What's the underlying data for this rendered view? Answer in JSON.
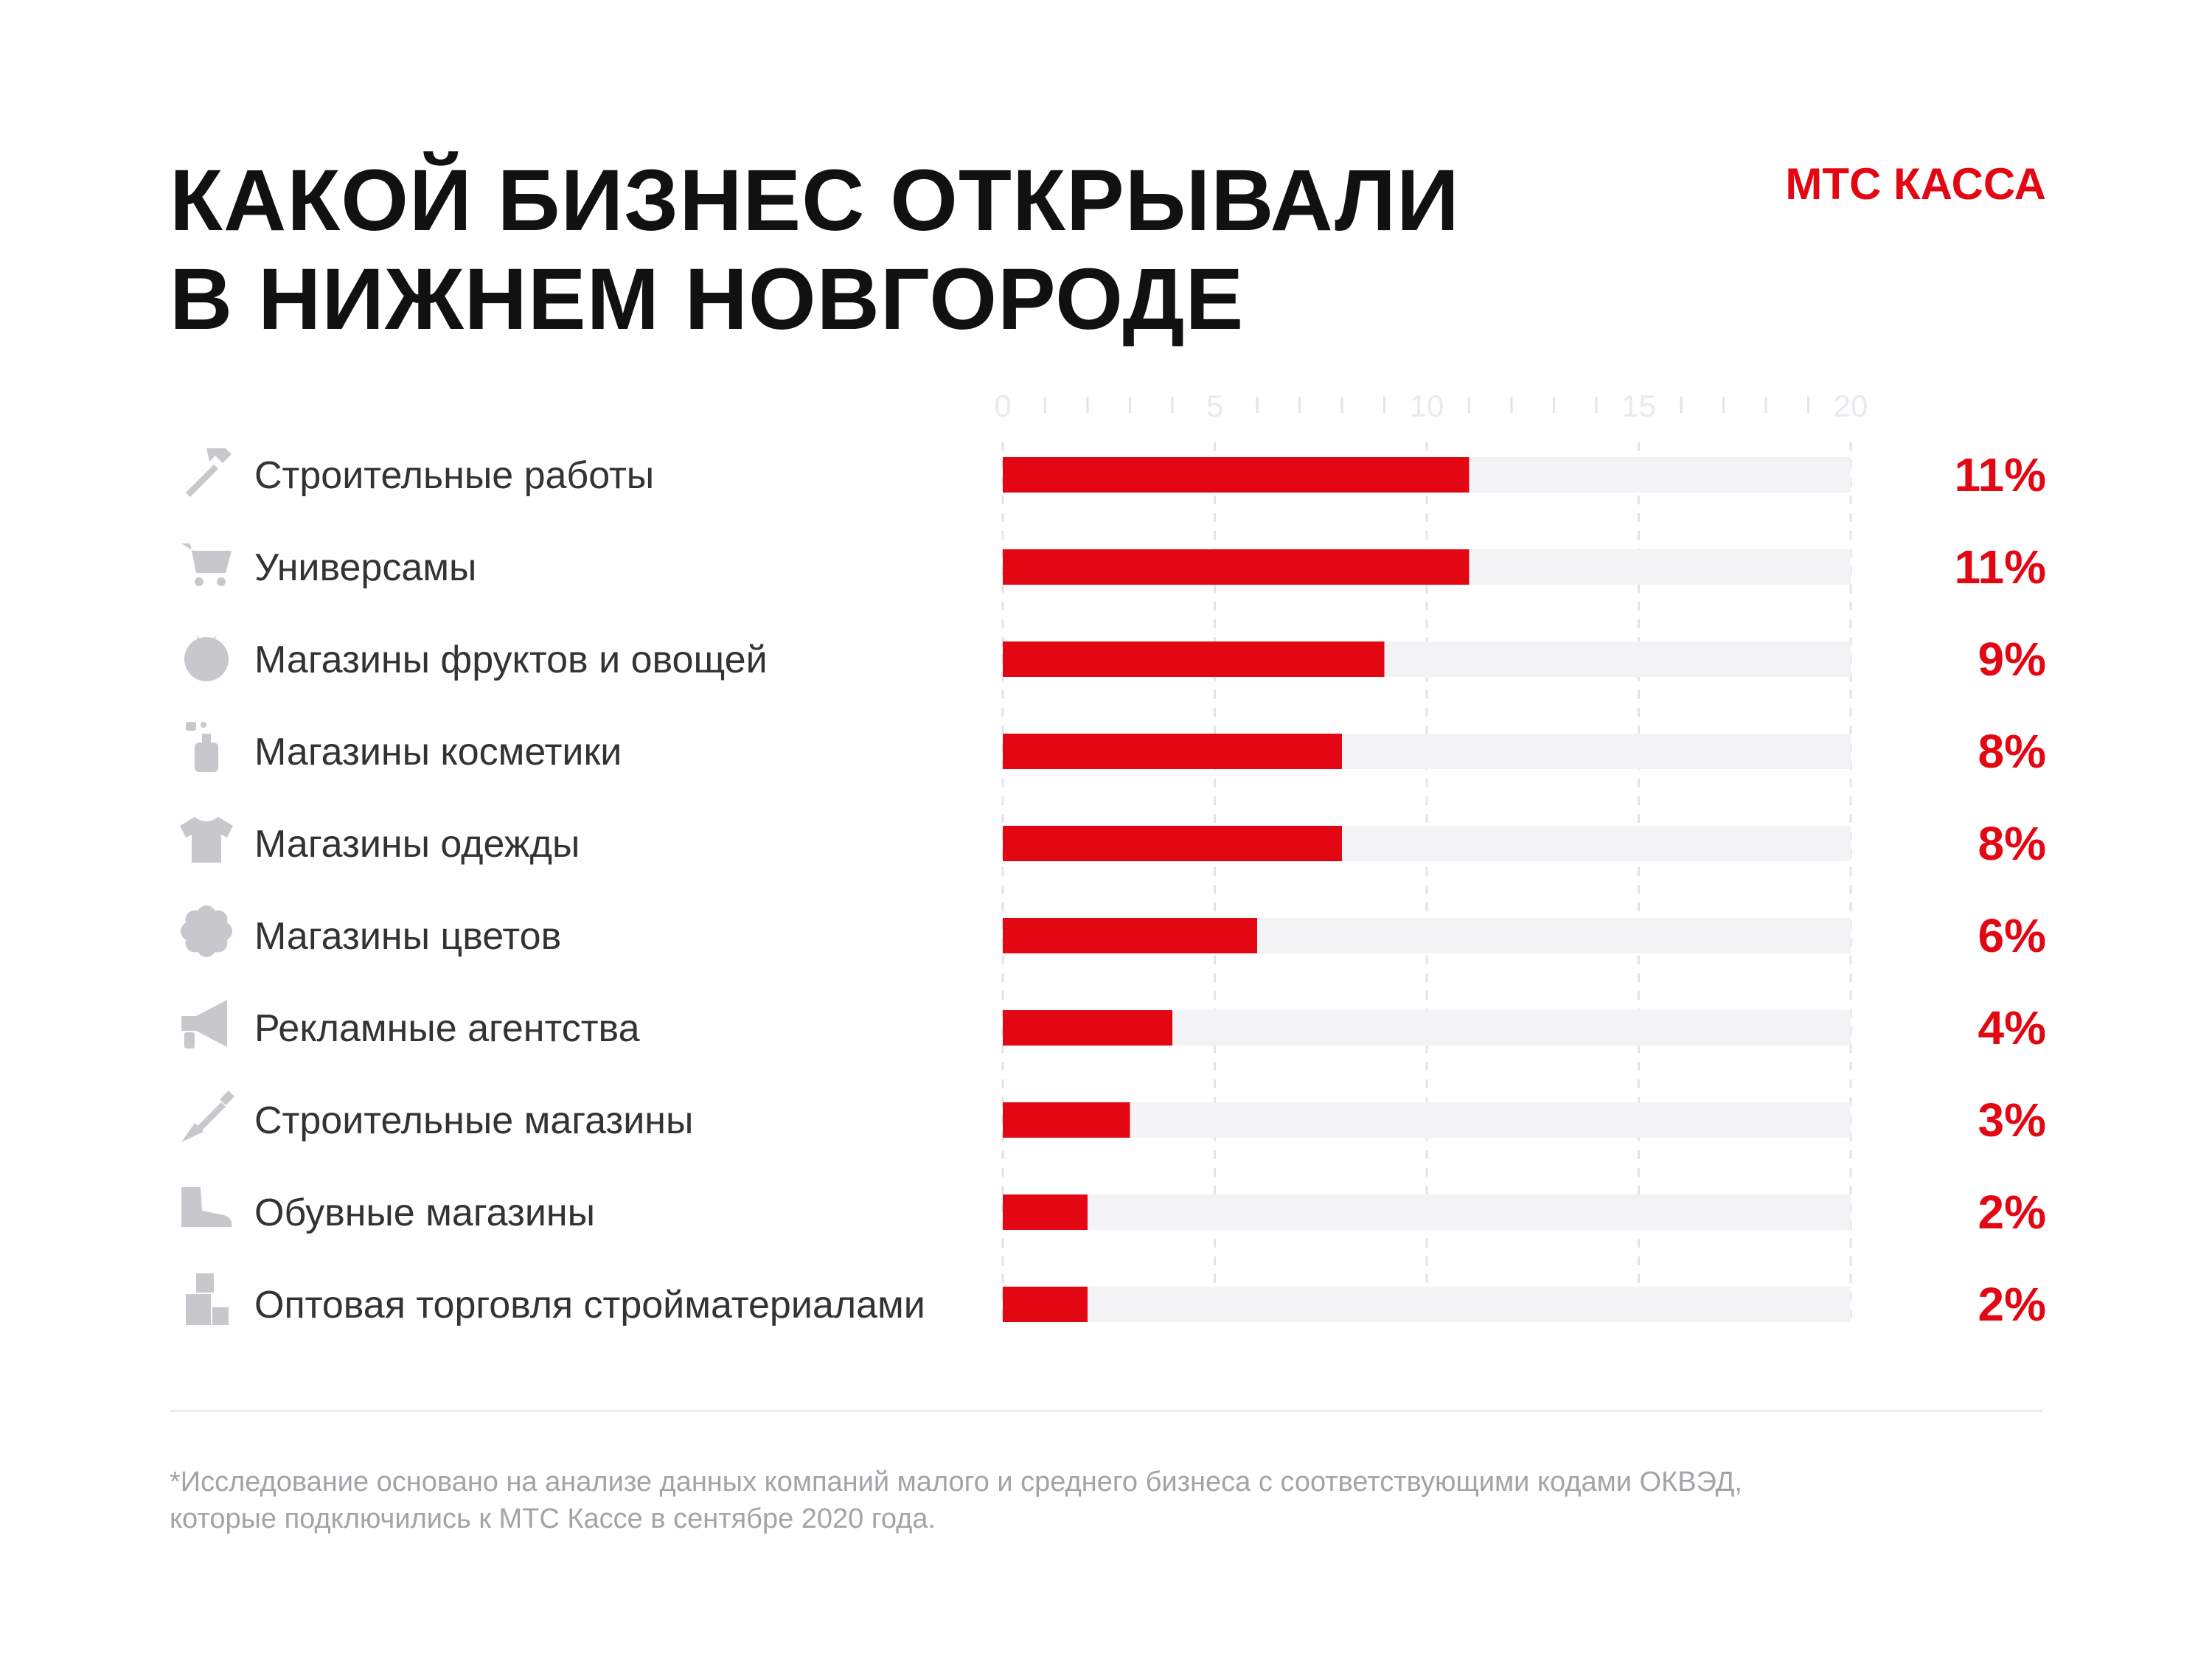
{
  "header": {
    "title_line1": "КАКОЙ БИЗНЕС ОТКРЫВАЛИ",
    "title_line2": "В НИЖНЕМ НОВГОРОДЕ",
    "brand": "МТС КАССА"
  },
  "colors": {
    "accent": "#e30613",
    "track": "#f3f3f6",
    "text": "#333333",
    "icon": "#c8c8cc",
    "axis": "#e9e9ee"
  },
  "chart_data": {
    "type": "bar",
    "orientation": "horizontal",
    "xlim": [
      0,
      20
    ],
    "x_tick_labels": [
      "0",
      "5",
      "10",
      "15",
      "20"
    ],
    "grid": true,
    "categories": [
      "Строительные работы",
      "Универсамы",
      "Магазины фруктов и овощей",
      "Магазины косметики",
      "Магазины одежды",
      "Магазины цветов",
      "Рекламные агентства",
      "Строительные магазины",
      "Обувные магазины",
      "Оптовая торговля стройматериалами"
    ],
    "values": [
      11,
      11,
      9,
      8,
      8,
      6,
      4,
      3,
      2,
      2
    ],
    "value_labels": [
      "11%",
      "11%",
      "9%",
      "8%",
      "8%",
      "6%",
      "4%",
      "3%",
      "2%",
      "2%"
    ],
    "icons": [
      "hammer-icon",
      "cart-icon",
      "tomato-icon",
      "perfume-icon",
      "shirt-icon",
      "flower-icon",
      "megaphone-icon",
      "shovel-icon",
      "boot-icon",
      "boxes-icon"
    ]
  },
  "footnote": {
    "line1": "*Исследование основано на анализе данных компаний малого и среднего бизнеса с соответствующими кодами ОКВЭД,",
    "line2": "которые подключились к МТС Кассе в сентябре 2020 года."
  }
}
